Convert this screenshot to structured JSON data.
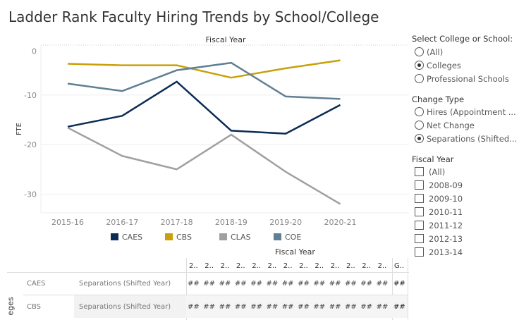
{
  "title": "Ladder Rank Faculty Hiring Trends by School/College",
  "chart_data": {
    "type": "line",
    "title": "",
    "top_axis_label": "Fiscal Year",
    "ylabel": "FTE",
    "xlabel": "",
    "categories": [
      "2015-16",
      "2016-17",
      "2017-18",
      "2018-19",
      "2019-20",
      "2020-21"
    ],
    "ylim": [
      -34,
      0
    ],
    "yticks": [
      0,
      -10,
      -20,
      -30
    ],
    "ytick_labels": [
      "0",
      "-10",
      "-20",
      "-30"
    ],
    "grid": true,
    "legend_position": "bottom",
    "series": [
      {
        "name": "CAES",
        "color": "#0b2c55",
        "values": [
          -16.4,
          -14.2,
          -7.3,
          -17.2,
          -17.8,
          -12.0
        ]
      },
      {
        "name": "CBS",
        "color": "#c9a009",
        "values": [
          -3.7,
          -4.0,
          -4.0,
          -6.5,
          -4.6,
          -3.0
        ]
      },
      {
        "name": "CLAS",
        "color": "#a0a0a0",
        "values": [
          -16.6,
          -22.3,
          -25.0,
          -18.0,
          -25.5,
          -32.0
        ]
      },
      {
        "name": "COE",
        "color": "#5f7f94",
        "values": [
          -7.7,
          -9.2,
          -5.0,
          -3.5,
          -10.3,
          -10.8
        ]
      }
    ]
  },
  "filters": {
    "school": {
      "label": "Select College or School:",
      "options": [
        "(All)",
        "Colleges",
        "Professional Schools"
      ],
      "selected": 1
    },
    "change_type": {
      "label": "Change Type",
      "options": [
        "Hires (Appointment ...",
        "Net Change",
        "Separations (Shifted..."
      ],
      "selected": 2
    },
    "fiscal_year": {
      "label": "Fiscal Year",
      "options": [
        "(All)",
        "2008-09",
        "2009-10",
        "2010-11",
        "2011-12",
        "2012-13",
        "2013-14"
      ]
    }
  },
  "table": {
    "header": "Fiscal Year",
    "columns": [
      "2..",
      "2..",
      "2..",
      "2..",
      "2..",
      "2..",
      "2..",
      "2..",
      "2..",
      "2..",
      "2..",
      "2..",
      "2..",
      "G.."
    ],
    "row_group_label": "eges",
    "rows": [
      {
        "school": "CAES",
        "measure": "Separations (Shifted Year)",
        "cells": [
          "##",
          "##",
          "##",
          "##",
          "##",
          "##",
          "##",
          "##",
          "##",
          "##",
          "##",
          "##",
          "##",
          "##"
        ]
      },
      {
        "school": "CBS",
        "measure": "Separations (Shifted Year)",
        "cells": [
          "##",
          "##",
          "##",
          "##",
          "##",
          "##",
          "##",
          "##",
          "##",
          "##",
          "##",
          "##",
          "##",
          "##"
        ]
      }
    ]
  }
}
